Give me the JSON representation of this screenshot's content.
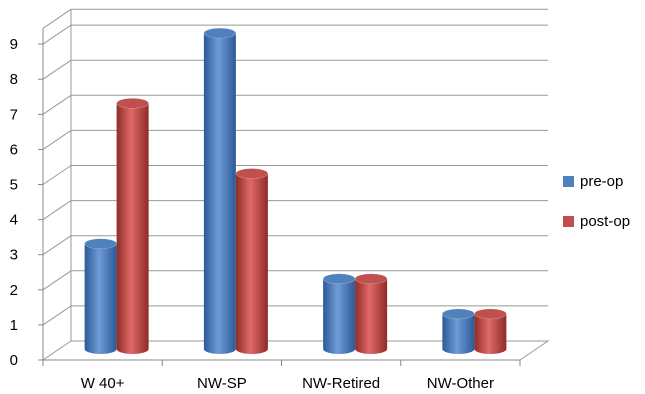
{
  "chart_data": {
    "type": "bar",
    "title": "",
    "xlabel": "",
    "ylabel": "",
    "categories": [
      "W 40+",
      "NW-SP",
      "NW-Retired",
      "NW-Other"
    ],
    "series": [
      {
        "name": "pre-op",
        "values": [
          3,
          9,
          2,
          1
        ],
        "color": "#4F81BD"
      },
      {
        "name": "post-op",
        "values": [
          7,
          5,
          2,
          1
        ],
        "color": "#C0504D"
      }
    ],
    "ylim": [
      0,
      9
    ],
    "yticks": [
      "0",
      "1",
      "2",
      "3",
      "4",
      "5",
      "6",
      "7",
      "8",
      "9"
    ],
    "grid": true,
    "legend_position": "right"
  }
}
